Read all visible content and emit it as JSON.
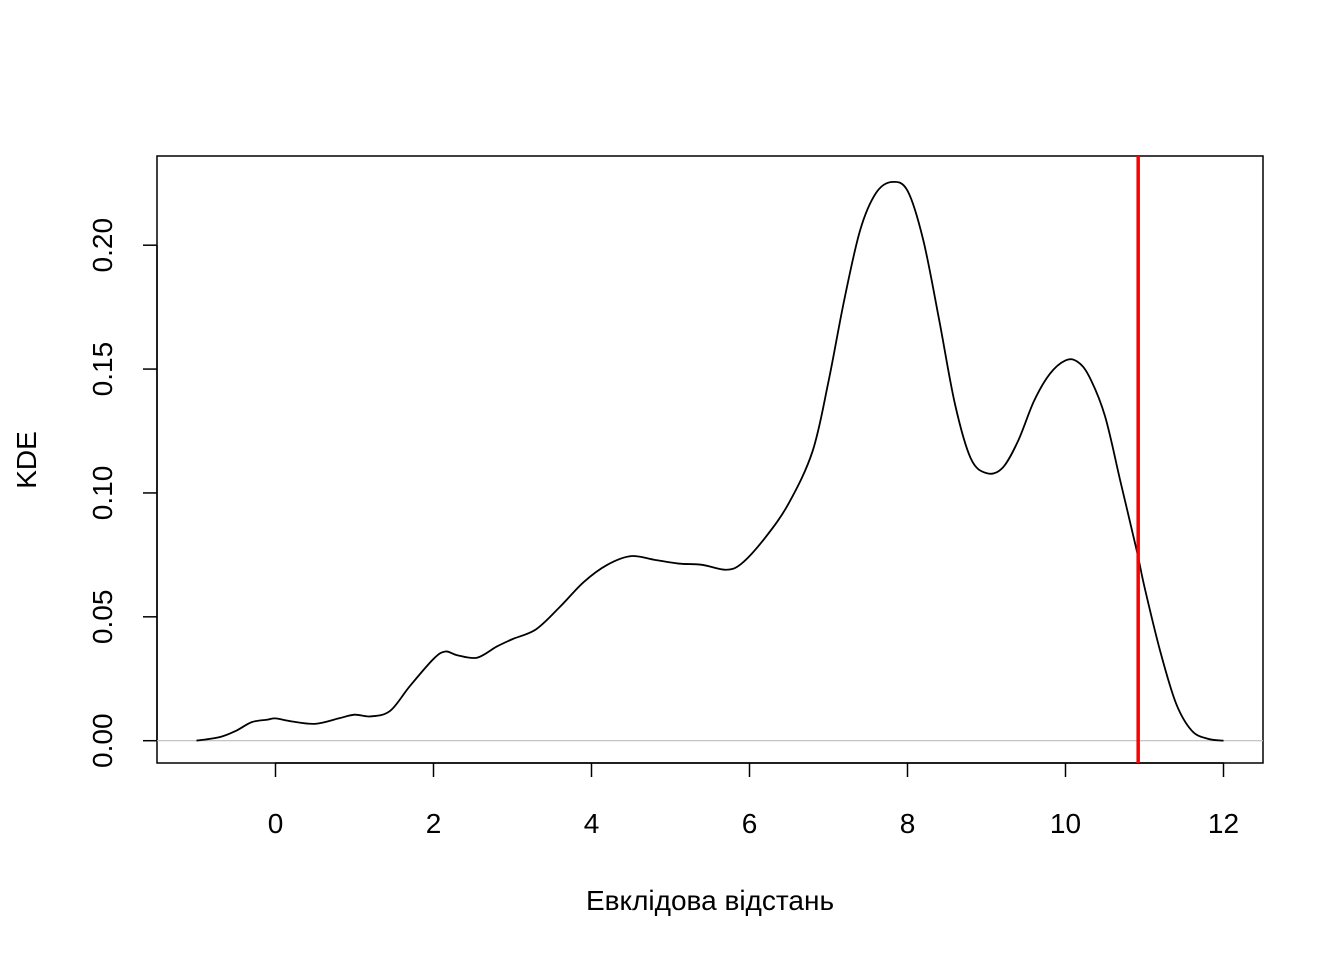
{
  "chart_data": {
    "type": "line",
    "title": "",
    "xlabel": "Евклідова відстань",
    "ylabel": "KDE",
    "xlim": [
      -1.5,
      12.5
    ],
    "ylim": [
      -0.009,
      0.236
    ],
    "x_ticks": [
      0,
      2,
      4,
      6,
      8,
      10,
      12
    ],
    "x_tick_labels": [
      "0",
      "2",
      "4",
      "6",
      "8",
      "10",
      "12"
    ],
    "y_ticks": [
      0.0,
      0.05,
      0.1,
      0.15,
      0.2
    ],
    "y_tick_labels": [
      "0.00",
      "0.05",
      "0.10",
      "0.15",
      "0.20"
    ],
    "grid": false,
    "baseline": {
      "y": 0,
      "color": "#bebebe"
    },
    "vline": {
      "x": 10.92,
      "color": "#ff0000"
    },
    "series": [
      {
        "color": "#000000",
        "x": [
          -1.0,
          -0.7,
          -0.5,
          -0.3,
          -0.1,
          0.0,
          0.2,
          0.5,
          0.8,
          1.0,
          1.2,
          1.45,
          1.7,
          2.0,
          2.15,
          2.3,
          2.55,
          2.8,
          3.0,
          3.3,
          3.6,
          3.9,
          4.2,
          4.5,
          4.8,
          5.1,
          5.4,
          5.7,
          5.9,
          6.2,
          6.5,
          6.8,
          7.0,
          7.2,
          7.4,
          7.6,
          7.8,
          8.0,
          8.2,
          8.4,
          8.6,
          8.8,
          9.0,
          9.2,
          9.4,
          9.6,
          9.8,
          10.0,
          10.15,
          10.3,
          10.5,
          10.7,
          10.9,
          11.0,
          11.2,
          11.4,
          11.6,
          11.8,
          12.0
        ],
        "y": [
          0.0,
          0.0015,
          0.004,
          0.0075,
          0.0085,
          0.009,
          0.0078,
          0.0068,
          0.009,
          0.0105,
          0.0098,
          0.012,
          0.022,
          0.033,
          0.036,
          0.0345,
          0.0335,
          0.038,
          0.041,
          0.045,
          0.054,
          0.064,
          0.071,
          0.0745,
          0.073,
          0.0715,
          0.071,
          0.069,
          0.0715,
          0.082,
          0.096,
          0.117,
          0.145,
          0.178,
          0.206,
          0.221,
          0.2255,
          0.222,
          0.202,
          0.17,
          0.136,
          0.114,
          0.108,
          0.11,
          0.121,
          0.137,
          0.148,
          0.1535,
          0.153,
          0.147,
          0.131,
          0.104,
          0.077,
          0.062,
          0.036,
          0.015,
          0.004,
          0.0008,
          0.0
        ]
      }
    ]
  }
}
